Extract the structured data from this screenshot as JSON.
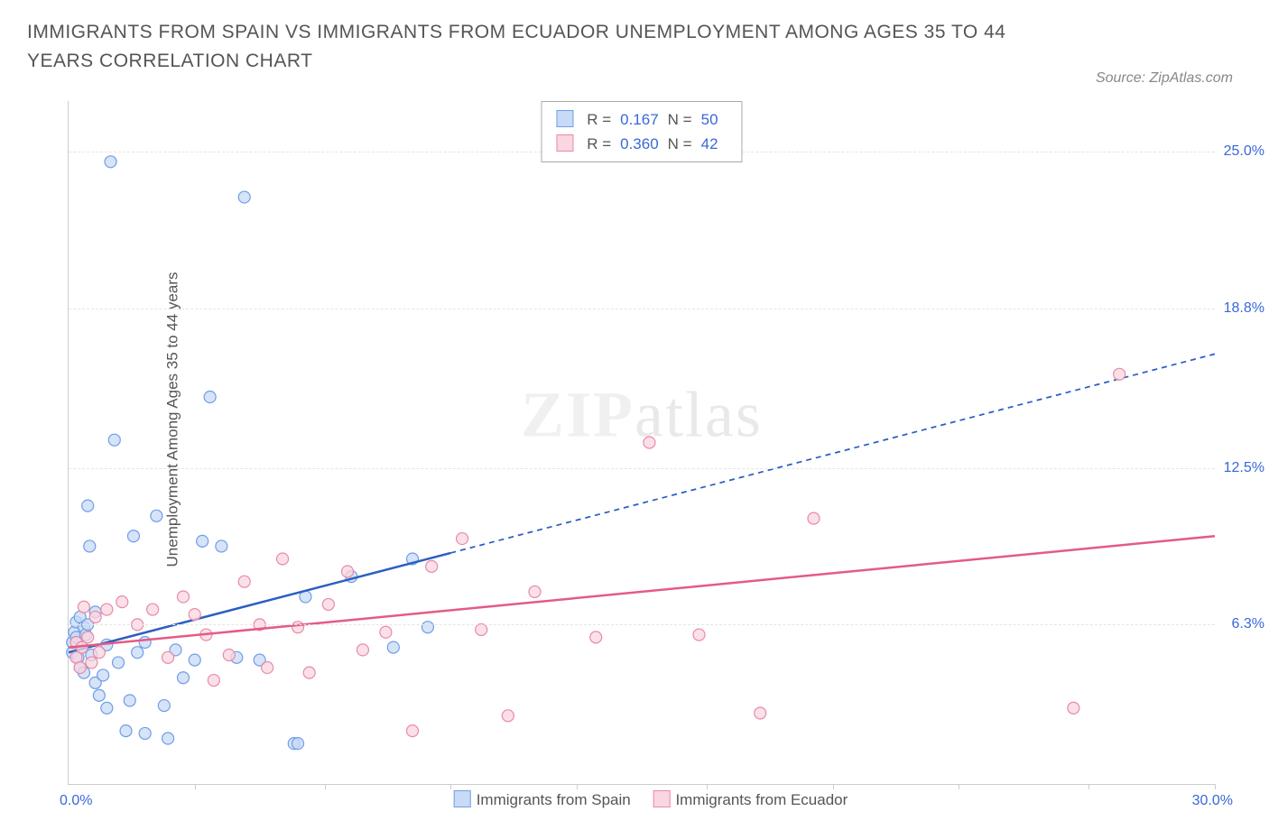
{
  "title": "IMMIGRANTS FROM SPAIN VS IMMIGRANTS FROM ECUADOR UNEMPLOYMENT AMONG AGES 35 TO 44 YEARS CORRELATION CHART",
  "source": "ZipAtlas.com",
  "ylabel": "Unemployment Among Ages 35 to 44 years",
  "type": "scatter",
  "xlim": [
    0,
    30
  ],
  "ylim": [
    0,
    27
  ],
  "xminLabel": "0.0%",
  "xmaxLabel": "30.0%",
  "xtick_positions": [
    3.3,
    6.7,
    10.0,
    13.3,
    16.7,
    20.0,
    23.3,
    26.7,
    30.0
  ],
  "yticks": [
    {
      "v": 6.3,
      "label": "6.3%"
    },
    {
      "v": 12.5,
      "label": "12.5%"
    },
    {
      "v": 18.8,
      "label": "18.8%"
    },
    {
      "v": 25.0,
      "label": "25.0%"
    }
  ],
  "grid_color": "#e5e5e5",
  "background_color": "#ffffff",
  "axis_color": "#cccccc",
  "tick_label_color": "#3968d8",
  "value_color": "#3968d8",
  "text_color": "#555555",
  "marker_radius": 6.5,
  "marker_stroke_width": 1.2,
  "trend_line_width": 2.5,
  "trend_dash": "6 5",
  "series": [
    {
      "name": "Immigrants from Spain",
      "R": "0.167",
      "N": "50",
      "fill": "#c8daf5",
      "stroke": "#6e9ee6",
      "line_color": "#2b5fc1",
      "trend": {
        "x1": 0,
        "y1": 5.2,
        "x2": 30,
        "y2": 17.0,
        "solid_until_x": 10
      },
      "points": [
        [
          0.1,
          5.2
        ],
        [
          0.1,
          5.6
        ],
        [
          0.15,
          6.0
        ],
        [
          0.2,
          5.8
        ],
        [
          0.2,
          6.4
        ],
        [
          0.25,
          5.0
        ],
        [
          0.3,
          6.6
        ],
        [
          0.3,
          4.6
        ],
        [
          0.35,
          5.4
        ],
        [
          0.4,
          6.2
        ],
        [
          0.4,
          4.4
        ],
        [
          0.45,
          5.9
        ],
        [
          0.5,
          11.0
        ],
        [
          0.5,
          6.3
        ],
        [
          0.55,
          9.4
        ],
        [
          0.6,
          5.1
        ],
        [
          0.7,
          4.0
        ],
        [
          0.7,
          6.8
        ],
        [
          0.8,
          3.5
        ],
        [
          0.9,
          4.3
        ],
        [
          1.0,
          5.5
        ],
        [
          1.0,
          3.0
        ],
        [
          1.1,
          24.6
        ],
        [
          1.2,
          13.6
        ],
        [
          1.3,
          4.8
        ],
        [
          1.5,
          2.1
        ],
        [
          1.6,
          3.3
        ],
        [
          1.7,
          9.8
        ],
        [
          1.8,
          5.2
        ],
        [
          2.0,
          2.0
        ],
        [
          2.0,
          5.6
        ],
        [
          2.3,
          10.6
        ],
        [
          2.5,
          3.1
        ],
        [
          2.6,
          1.8
        ],
        [
          2.8,
          5.3
        ],
        [
          3.0,
          4.2
        ],
        [
          3.3,
          4.9
        ],
        [
          3.5,
          9.6
        ],
        [
          3.7,
          15.3
        ],
        [
          4.0,
          9.4
        ],
        [
          4.4,
          5.0
        ],
        [
          4.6,
          23.2
        ],
        [
          5.0,
          4.9
        ],
        [
          5.9,
          1.6
        ],
        [
          6.0,
          1.6
        ],
        [
          6.2,
          7.4
        ],
        [
          7.4,
          8.2
        ],
        [
          8.5,
          5.4
        ],
        [
          9.0,
          8.9
        ],
        [
          9.4,
          6.2
        ]
      ]
    },
    {
      "name": "Immigrants from Ecuador",
      "R": "0.360",
      "N": "42",
      "fill": "#fad6e0",
      "stroke": "#e88aa6",
      "line_color": "#e45b85",
      "trend": {
        "x1": 0,
        "y1": 5.4,
        "x2": 30,
        "y2": 9.8,
        "solid_until_x": 30
      },
      "points": [
        [
          0.2,
          5.0
        ],
        [
          0.2,
          5.6
        ],
        [
          0.3,
          4.6
        ],
        [
          0.35,
          5.4
        ],
        [
          0.4,
          7.0
        ],
        [
          0.5,
          5.8
        ],
        [
          0.6,
          4.8
        ],
        [
          0.7,
          6.6
        ],
        [
          0.8,
          5.2
        ],
        [
          1.0,
          6.9
        ],
        [
          1.4,
          7.2
        ],
        [
          1.8,
          6.3
        ],
        [
          2.2,
          6.9
        ],
        [
          2.6,
          5.0
        ],
        [
          3.0,
          7.4
        ],
        [
          3.3,
          6.7
        ],
        [
          3.6,
          5.9
        ],
        [
          3.8,
          4.1
        ],
        [
          4.2,
          5.1
        ],
        [
          4.6,
          8.0
        ],
        [
          5.0,
          6.3
        ],
        [
          5.2,
          4.6
        ],
        [
          5.6,
          8.9
        ],
        [
          6.0,
          6.2
        ],
        [
          6.3,
          4.4
        ],
        [
          6.8,
          7.1
        ],
        [
          7.3,
          8.4
        ],
        [
          7.7,
          5.3
        ],
        [
          8.3,
          6.0
        ],
        [
          9.0,
          2.1
        ],
        [
          9.5,
          8.6
        ],
        [
          10.3,
          9.7
        ],
        [
          10.8,
          6.1
        ],
        [
          11.5,
          2.7
        ],
        [
          12.2,
          7.6
        ],
        [
          13.8,
          5.8
        ],
        [
          15.2,
          13.5
        ],
        [
          16.5,
          5.9
        ],
        [
          18.1,
          2.8
        ],
        [
          19.5,
          10.5
        ],
        [
          26.3,
          3.0
        ],
        [
          27.5,
          16.2
        ]
      ]
    }
  ]
}
